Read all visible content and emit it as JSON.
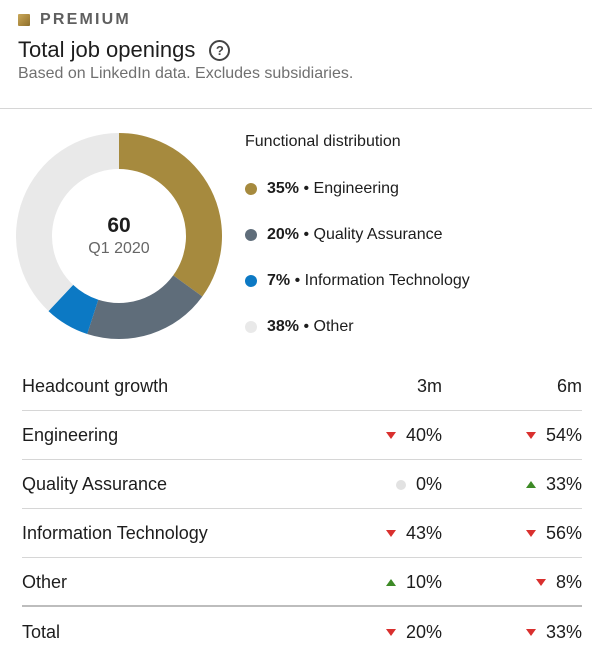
{
  "header": {
    "badge": "PREMIUM",
    "title": "Total job openings",
    "help_icon": "question-circle-icon",
    "subtitle": "Based on LinkedIn data. Excludes subsidiaries."
  },
  "donut": {
    "value": "60",
    "period": "Q1 2020"
  },
  "chart_data": {
    "type": "pie",
    "title": "Functional distribution",
    "series": [
      {
        "name": "Engineering",
        "value": 35,
        "color": "#a68a3e"
      },
      {
        "name": "Quality Assurance",
        "value": 20,
        "color": "#5f6d7a"
      },
      {
        "name": "Information Technology",
        "value": 7,
        "color": "#0c79c4"
      },
      {
        "name": "Other",
        "value": 38,
        "color": "#e9e9e9"
      }
    ]
  },
  "legend": {
    "title": "Functional distribution",
    "items": [
      {
        "pct": "35%",
        "name": "• Engineering",
        "color": "#a68a3e"
      },
      {
        "pct": "20%",
        "name": "• Quality Assurance",
        "color": "#5f6d7a"
      },
      {
        "pct": "7%",
        "name": "• Information Technology",
        "color": "#0c79c4"
      },
      {
        "pct": "38%",
        "name": "• Other",
        "color": "#e9e9e9"
      }
    ]
  },
  "table": {
    "header": {
      "label": "Headcount growth",
      "col_3m": "3m",
      "col_6m": "6m"
    },
    "rows": [
      {
        "label": "Engineering",
        "v3": "40%",
        "t3": "down",
        "v6": "54%",
        "t6": "down"
      },
      {
        "label": "Quality Assurance",
        "v3": "0%",
        "t3": "neutral",
        "v6": "33%",
        "t6": "up"
      },
      {
        "label": "Information Technology",
        "v3": "43%",
        "t3": "down",
        "v6": "56%",
        "t6": "down"
      },
      {
        "label": "Other",
        "v3": "10%",
        "t3": "up",
        "v6": "8%",
        "t6": "down"
      },
      {
        "label": "Total",
        "v3": "20%",
        "t3": "down",
        "v6": "33%",
        "t6": "down"
      }
    ]
  },
  "colors": {
    "down": "#d9302e",
    "up": "#3d8a26",
    "neutral": "#e2e2e2"
  }
}
